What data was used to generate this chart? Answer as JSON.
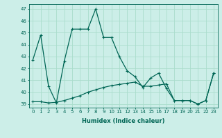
{
  "xlabel": "Humidex (Indice chaleur)",
  "bg_color": "#cceee8",
  "line_color": "#006655",
  "grid_color": "#aaddcc",
  "x_ticks": [
    0,
    1,
    2,
    3,
    4,
    5,
    6,
    7,
    8,
    9,
    10,
    11,
    12,
    13,
    14,
    15,
    16,
    17,
    18,
    19,
    20,
    21,
    22,
    23
  ],
  "y_ticks": [
    39,
    40,
    41,
    42,
    43,
    44,
    45,
    46,
    47
  ],
  "ylim": [
    38.7,
    47.4
  ],
  "xlim": [
    -0.5,
    23.5
  ],
  "series1_y": [
    42.7,
    44.8,
    40.5,
    39.1,
    42.6,
    45.3,
    45.3,
    45.3,
    47.0,
    44.6,
    44.6,
    43.0,
    41.8,
    41.3,
    40.4,
    41.2,
    41.6,
    40.3,
    39.3,
    39.3,
    39.3,
    39.0,
    39.3,
    41.6
  ],
  "series2_y": [
    39.2,
    39.2,
    39.1,
    39.15,
    39.3,
    39.5,
    39.7,
    40.0,
    40.2,
    40.4,
    40.55,
    40.65,
    40.75,
    40.85,
    40.5,
    40.5,
    40.6,
    40.7,
    39.3,
    39.3,
    39.3,
    39.0,
    39.3,
    41.6
  ],
  "xlabel_fontsize": 6,
  "tick_fontsize": 5,
  "linewidth1": 0.9,
  "linewidth2": 0.9,
  "marker_size": 2.5
}
